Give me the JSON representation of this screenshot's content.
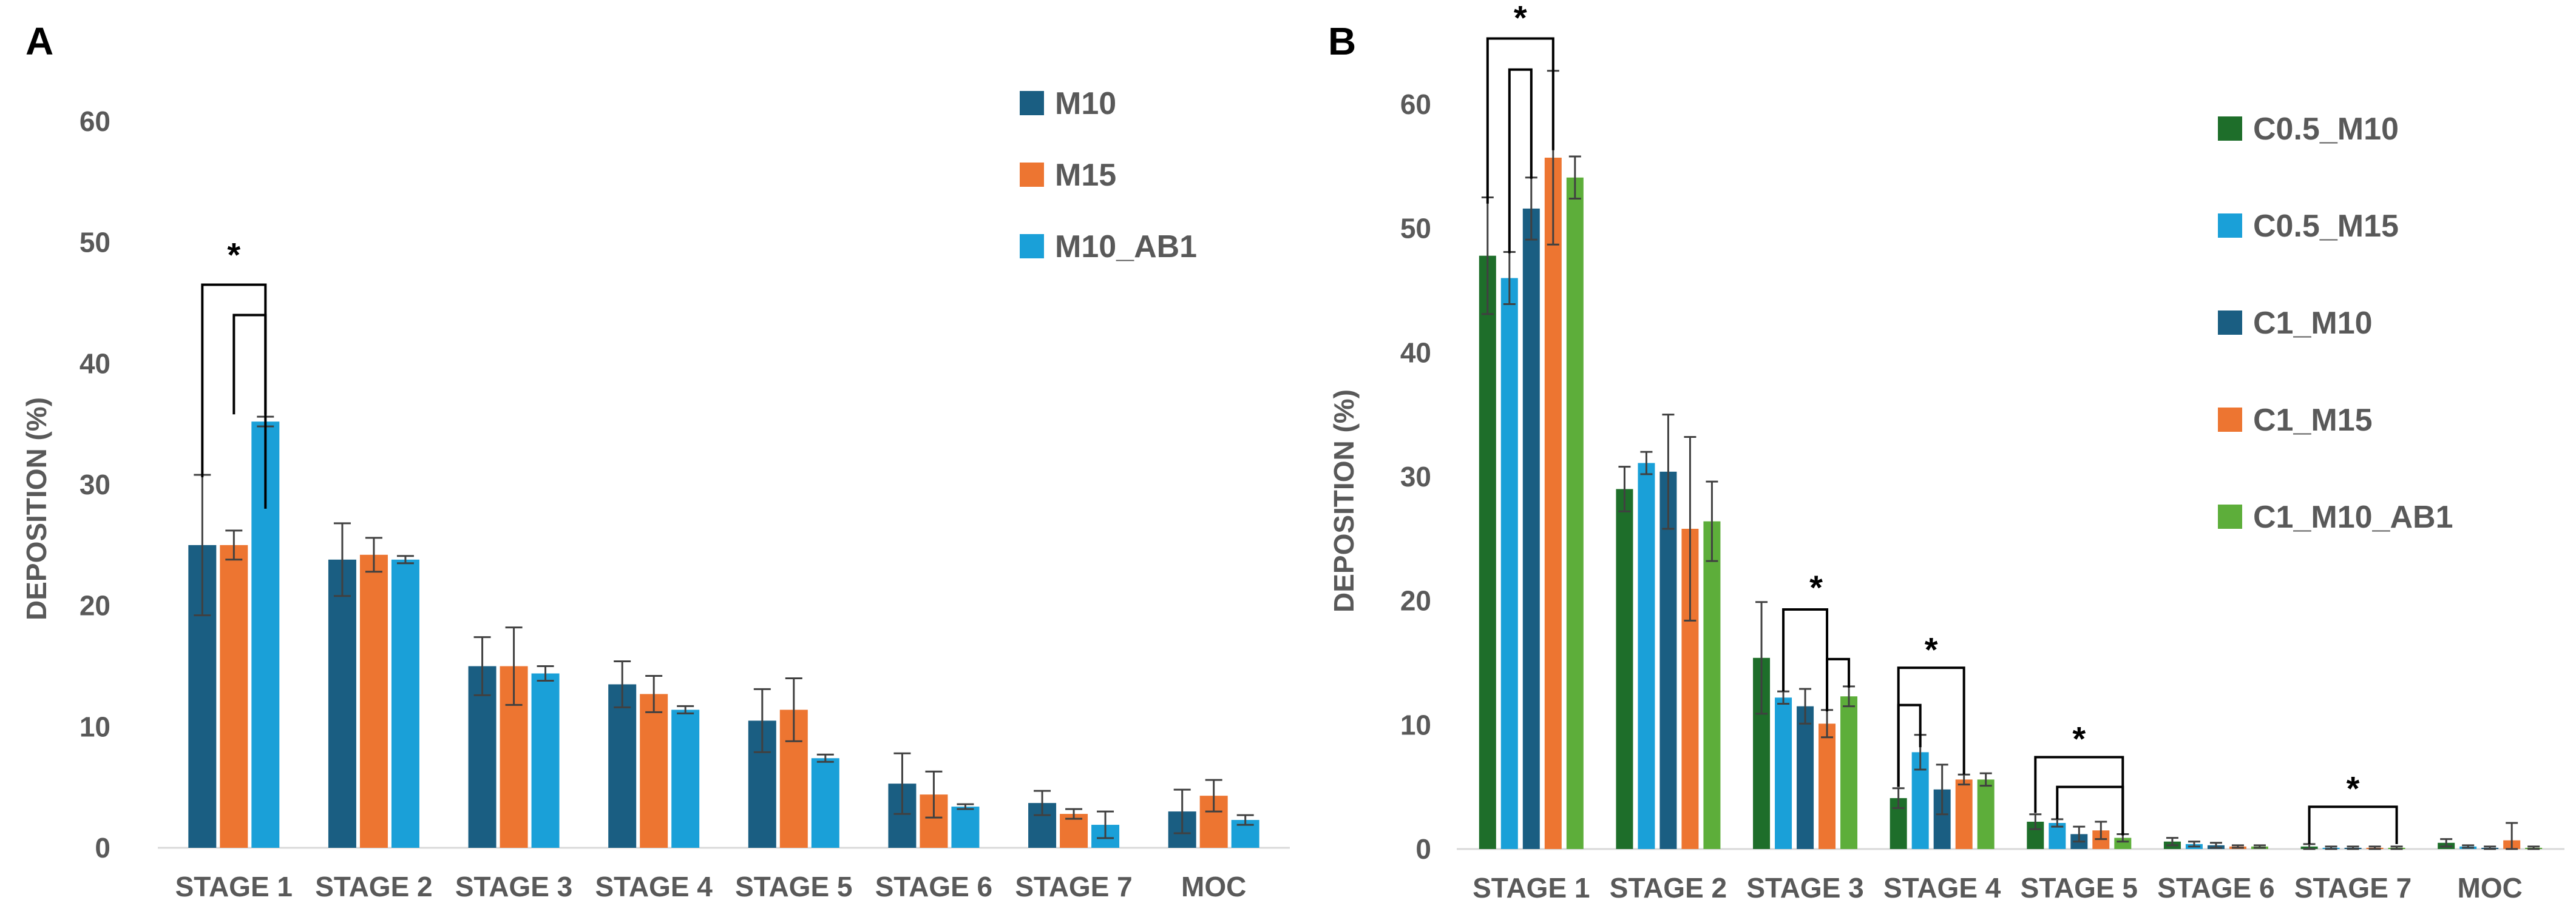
{
  "chart_data": [
    {
      "panel": "A",
      "type": "bar",
      "title": "",
      "xlabel": "",
      "ylabel": "DEPOSITION (%)",
      "ylim": [
        0,
        60
      ],
      "yticks": [
        0,
        10,
        20,
        30,
        40,
        50,
        60
      ],
      "categories": [
        "STAGE 1",
        "STAGE 2",
        "STAGE 3",
        "STAGE 4",
        "STAGE 5",
        "STAGE 6",
        "STAGE 7",
        "MOC"
      ],
      "legend_position": "top-right",
      "series": [
        {
          "name": "M10",
          "color": "#1A5E82",
          "values": [
            25.0,
            23.8,
            15.0,
            13.5,
            10.5,
            5.3,
            3.7,
            3.0
          ],
          "errors": [
            5.8,
            3.0,
            2.4,
            1.9,
            2.6,
            2.5,
            1.0,
            1.8
          ]
        },
        {
          "name": "M15",
          "color": "#ED7531",
          "values": [
            25.0,
            24.2,
            15.0,
            12.7,
            11.4,
            4.4,
            2.8,
            4.3
          ],
          "errors": [
            1.2,
            1.4,
            3.2,
            1.5,
            2.6,
            1.9,
            0.4,
            1.3
          ]
        },
        {
          "name": "M10_AB1",
          "color": "#1AA0D8",
          "values": [
            35.2,
            23.8,
            14.4,
            11.4,
            7.4,
            3.4,
            1.9,
            2.3
          ],
          "errors": [
            0.4,
            0.3,
            0.6,
            0.3,
            0.3,
            0.2,
            1.1,
            0.4
          ]
        }
      ],
      "annotations": [
        {
          "label": "*",
          "brackets": [
            {
              "category": "STAGE 1",
              "from_series": "M10",
              "to_series": "M10_AB1"
            },
            {
              "category": "STAGE 1",
              "from_series": "M15",
              "to_series": "M10_AB1"
            }
          ]
        }
      ]
    },
    {
      "panel": "B",
      "type": "bar",
      "title": "",
      "xlabel": "",
      "ylabel": "DEPOSITION (%)",
      "ylim": [
        0,
        60
      ],
      "yticks": [
        0,
        10,
        20,
        30,
        40,
        50,
        60
      ],
      "categories": [
        "STAGE 1",
        "STAGE 2",
        "STAGE 3",
        "STAGE 4",
        "STAGE 5",
        "STAGE 6",
        "STAGE 7",
        "MOC"
      ],
      "legend_position": "right",
      "series": [
        {
          "name": "C0.5_M10",
          "color": "#1E6E2A",
          "values": [
            47.8,
            29.0,
            15.4,
            4.1,
            2.2,
            0.6,
            0.2,
            0.5
          ],
          "errors": [
            4.7,
            1.8,
            4.5,
            0.8,
            0.6,
            0.3,
            0.2,
            0.3
          ]
        },
        {
          "name": "C0.5_M15",
          "color": "#1AA0D8",
          "values": [
            46.0,
            31.1,
            12.2,
            7.8,
            2.1,
            0.4,
            0.1,
            0.2
          ],
          "errors": [
            2.1,
            0.9,
            0.5,
            1.4,
            0.3,
            0.2,
            0.1,
            0.1
          ]
        },
        {
          "name": "C1_M10",
          "color": "#1A5E82",
          "values": [
            51.6,
            30.4,
            11.5,
            4.8,
            1.2,
            0.3,
            0.1,
            0.1
          ],
          "errors": [
            2.5,
            4.6,
            1.4,
            2.0,
            0.6,
            0.2,
            0.1,
            0.1
          ]
        },
        {
          "name": "C1_M15",
          "color": "#ED7531",
          "values": [
            55.7,
            25.8,
            10.1,
            5.6,
            1.5,
            0.2,
            0.1,
            0.7
          ],
          "errors": [
            7.0,
            7.4,
            1.1,
            0.4,
            0.7,
            0.1,
            0.1,
            1.4
          ]
        },
        {
          "name": "C1_M10_AB1",
          "color": "#5DAE3A",
          "values": [
            54.1,
            26.4,
            12.3,
            5.6,
            0.9,
            0.2,
            0.1,
            0.1
          ],
          "errors": [
            1.7,
            3.2,
            0.8,
            0.5,
            0.3,
            0.1,
            0.1,
            0.1
          ]
        }
      ],
      "annotations": [
        {
          "label": "*",
          "brackets": [
            {
              "category": "STAGE 1",
              "from_series": "C0.5_M10",
              "to_series": "C1_M15"
            },
            {
              "category": "STAGE 1",
              "from_series": "C0.5_M15",
              "to_series": "C1_M10"
            }
          ]
        },
        {
          "label": "*",
          "brackets": [
            {
              "category": "STAGE 3",
              "from_series": "C0.5_M15",
              "to_series": "C1_M15"
            },
            {
              "category": "STAGE 3",
              "from_series": "C1_M15",
              "to_series": "C1_M10_AB1"
            }
          ]
        },
        {
          "label": "*",
          "brackets": [
            {
              "category": "STAGE 4",
              "from_series": "C0.5_M10",
              "to_series": "C1_M15"
            },
            {
              "category": "STAGE 4",
              "from_series": "C0.5_M10",
              "to_series": "C0.5_M15"
            }
          ]
        },
        {
          "label": "*",
          "brackets": [
            {
              "category": "STAGE 5",
              "from_series": "C0.5_M10",
              "to_series": "C1_M10_AB1"
            },
            {
              "category": "STAGE 5",
              "from_series": "C0.5_M15",
              "to_series": "C1_M10_AB1"
            }
          ]
        },
        {
          "label": "*",
          "brackets": [
            {
              "category": "STAGE 7",
              "from_series": "C0.5_M10",
              "to_series": "C1_M10_AB1"
            }
          ]
        }
      ]
    }
  ]
}
